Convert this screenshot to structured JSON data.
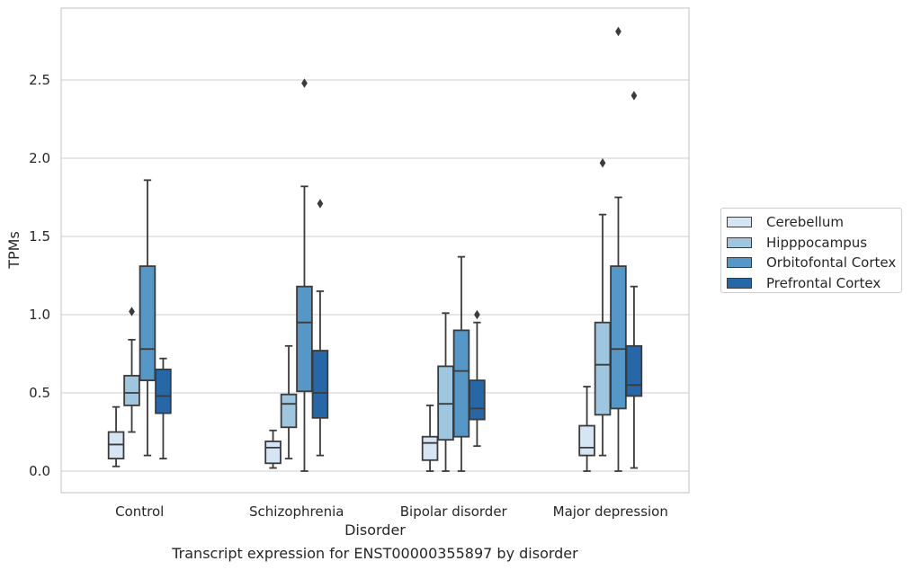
{
  "chart_data": {
    "type": "box",
    "categories": [
      "Control",
      "Schizophrenia",
      "Bipolar disorder",
      "Major depression"
    ],
    "xlabel": "Disorder",
    "ylabel": "TPMs",
    "ylim": [
      -0.14,
      2.96
    ],
    "yticks": [
      "0.0",
      "0.5",
      "1.0",
      "1.5",
      "2.0",
      "2.5"
    ],
    "yticks_values": [
      0,
      0.5,
      1.0,
      1.5,
      2.0,
      2.5
    ],
    "grid": "horizontal",
    "legend_position": "right",
    "series": [
      {
        "name": "Cerebellum",
        "color": "#d6e5f4",
        "boxes": [
          {
            "whislo": 0.03,
            "q1": 0.08,
            "med": 0.17,
            "q3": 0.25,
            "whishi": 0.41,
            "fliers": []
          },
          {
            "whislo": 0.02,
            "q1": 0.05,
            "med": 0.15,
            "q3": 0.19,
            "whishi": 0.26,
            "fliers": []
          },
          {
            "whislo": 0.0,
            "q1": 0.07,
            "med": 0.18,
            "q3": 0.22,
            "whishi": 0.42,
            "fliers": []
          },
          {
            "whislo": 0.0,
            "q1": 0.1,
            "med": 0.15,
            "q3": 0.29,
            "whishi": 0.54,
            "fliers": []
          }
        ]
      },
      {
        "name": "Hipppocampus",
        "color": "#9ec6de",
        "boxes": [
          {
            "whislo": 0.25,
            "q1": 0.42,
            "med": 0.5,
            "q3": 0.61,
            "whishi": 0.84,
            "fliers": [
              1.02
            ]
          },
          {
            "whislo": 0.08,
            "q1": 0.28,
            "med": 0.43,
            "q3": 0.49,
            "whishi": 0.8,
            "fliers": []
          },
          {
            "whislo": 0.0,
            "q1": 0.2,
            "med": 0.43,
            "q3": 0.67,
            "whishi": 1.01,
            "fliers": []
          },
          {
            "whislo": 0.1,
            "q1": 0.36,
            "med": 0.68,
            "q3": 0.95,
            "whishi": 1.64,
            "fliers": [
              1.97
            ]
          }
        ]
      },
      {
        "name": "Orbitofontal Cortex",
        "color": "#5597c6",
        "boxes": [
          {
            "whislo": 0.1,
            "q1": 0.58,
            "med": 0.78,
            "q3": 1.31,
            "whishi": 1.86,
            "fliers": []
          },
          {
            "whislo": 0.0,
            "q1": 0.51,
            "med": 0.95,
            "q3": 1.18,
            "whishi": 1.82,
            "fliers": [
              2.48
            ]
          },
          {
            "whislo": 0.0,
            "q1": 0.22,
            "med": 0.64,
            "q3": 0.9,
            "whishi": 1.37,
            "fliers": []
          },
          {
            "whislo": 0.0,
            "q1": 0.4,
            "med": 0.78,
            "q3": 1.31,
            "whishi": 1.75,
            "fliers": [
              2.81
            ]
          }
        ]
      },
      {
        "name": "Prefrontal Cortex",
        "color": "#2667a7",
        "boxes": [
          {
            "whislo": 0.08,
            "q1": 0.37,
            "med": 0.48,
            "q3": 0.65,
            "whishi": 0.72,
            "fliers": []
          },
          {
            "whislo": 0.1,
            "q1": 0.34,
            "med": 0.5,
            "q3": 0.77,
            "whishi": 1.15,
            "fliers": [
              1.71
            ]
          },
          {
            "whislo": 0.16,
            "q1": 0.33,
            "med": 0.4,
            "q3": 0.58,
            "whishi": 0.95,
            "fliers": [
              1.0
            ]
          },
          {
            "whislo": 0.02,
            "q1": 0.48,
            "med": 0.55,
            "q3": 0.8,
            "whishi": 1.18,
            "fliers": [
              2.4
            ]
          }
        ]
      }
    ]
  },
  "caption": "Transcript expression for ENST00000355897 by disorder"
}
